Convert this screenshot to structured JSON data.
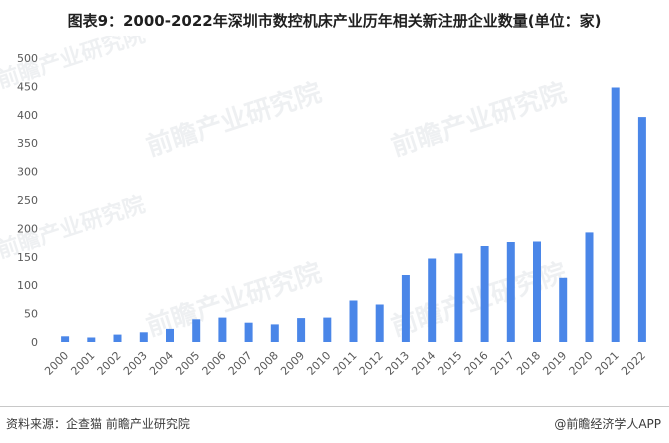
{
  "title": "图表9：2000-2022年深圳市数控机床产业历年相关新注册企业数量(单位：家)",
  "chart_data": {
    "type": "bar",
    "categories": [
      "2000",
      "2001",
      "2002",
      "2003",
      "2004",
      "2005",
      "2006",
      "2007",
      "2008",
      "2009",
      "2010",
      "2011",
      "2012",
      "2013",
      "2014",
      "2015",
      "2016",
      "2017",
      "2018",
      "2019",
      "2020",
      "2021",
      "2022"
    ],
    "values": [
      10,
      8,
      13,
      17,
      23,
      40,
      43,
      34,
      31,
      42,
      43,
      73,
      66,
      118,
      147,
      156,
      169,
      176,
      177,
      113,
      193,
      448,
      396
    ],
    "ylim": [
      0,
      500
    ],
    "yticks": [
      0,
      50,
      100,
      150,
      200,
      250,
      300,
      350,
      400,
      450,
      500
    ],
    "bar_color": "#4a86e8",
    "grid": false
  },
  "footer": {
    "source": "资料来源：企查猫 前瞻产业研究院",
    "brand": "@前瞻经济学人APP"
  },
  "watermark": {
    "text": "前瞻产业研究院"
  }
}
